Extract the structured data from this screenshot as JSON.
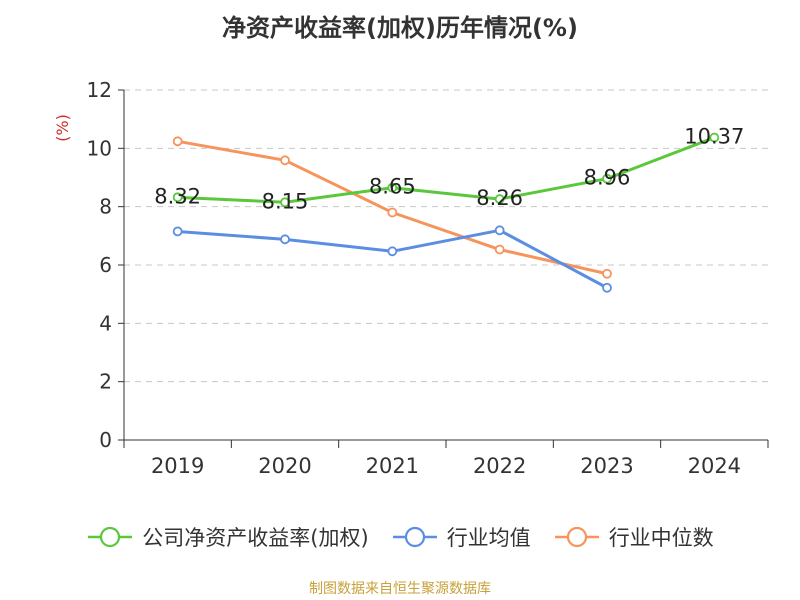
{
  "chart_data": {
    "type": "line",
    "title": "净资产收益率(加权)历年情况(%)",
    "ylabel": "(%)",
    "xlabel": "",
    "categories": [
      "2019",
      "2020",
      "2021",
      "2022",
      "2023",
      "2024"
    ],
    "ylim": [
      0,
      12
    ],
    "yticks": [
      0,
      2,
      4,
      6,
      8,
      10,
      12
    ],
    "grid": true,
    "legend_position": "bottom",
    "series": [
      {
        "name": "公司净资产收益率(加权)",
        "color": "#5ac73c",
        "values": [
          8.32,
          8.15,
          8.65,
          8.26,
          8.96,
          10.37
        ],
        "data_labels": [
          "8.32",
          "8.15",
          "8.65",
          "8.26",
          "8.96",
          "10.37"
        ]
      },
      {
        "name": "行业均值",
        "color": "#5b8ee2",
        "values": [
          7.15,
          6.88,
          6.47,
          7.19,
          5.22,
          null
        ]
      },
      {
        "name": "行业中位数",
        "color": "#f7945c",
        "values": [
          10.24,
          9.59,
          7.8,
          6.53,
          5.7,
          null
        ]
      }
    ]
  },
  "source_note": "制图数据来自恒生聚源数据库"
}
